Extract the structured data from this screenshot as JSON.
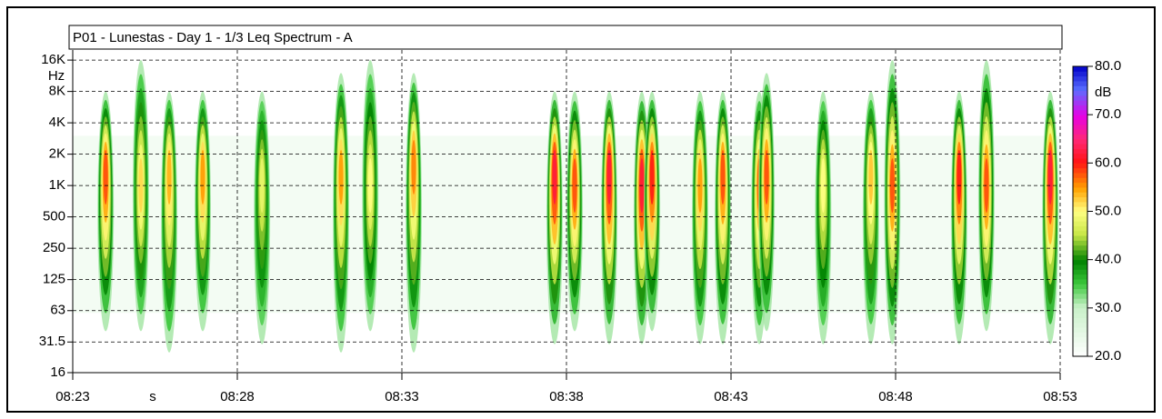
{
  "chart_data": {
    "type": "spectrogram",
    "title": "P01 - Lunestas - Day 1 - 1/3 Leq Spectrum - A",
    "x_label": "s",
    "y_label": "Hz",
    "color_label": "dB",
    "x": [
      1.0,
      2.07,
      2.93,
      3.95,
      5.75,
      8.15,
      9.04,
      10.36,
      14.64,
      15.25,
      16.3,
      17.29,
      17.6,
      19.06,
      19.75,
      20.86,
      21.08,
      22.8,
      24.25,
      24.9,
      26.93,
      27.76,
      29.7
    ],
    "values": [
      58,
      52,
      54,
      55,
      48,
      55,
      50,
      56,
      62,
      58,
      62,
      62,
      60,
      55,
      58,
      57,
      58,
      50,
      53,
      58,
      60,
      58,
      62
    ],
    "freq_peak": [
      1200,
      1000,
      1200,
      1200,
      1000,
      1200,
      1000,
      1500,
      1200,
      1000,
      1200,
      1000,
      1200,
      1000,
      1200,
      1000,
      1200,
      1000,
      1200,
      1000,
      1200,
      1000,
      1200
    ],
    "freq_low": [
      40,
      40,
      25,
      40,
      30,
      25,
      40,
      25,
      30,
      40,
      30,
      30,
      40,
      30,
      30,
      30,
      40,
      30,
      30,
      30,
      30,
      40,
      30
    ],
    "freq_high": [
      8000,
      16000,
      8000,
      8000,
      8000,
      12000,
      16000,
      12000,
      8000,
      8000,
      8000,
      8000,
      8000,
      8000,
      8000,
      8000,
      12000,
      8000,
      8000,
      16000,
      8000,
      16000,
      8000
    ],
    "xlim": [
      0,
      30
    ],
    "xticks": [
      {
        "value": 0,
        "label": "08:23"
      },
      {
        "value": 5,
        "label": "08:28"
      },
      {
        "value": 10,
        "label": "08:33"
      },
      {
        "value": 15,
        "label": "08:38"
      },
      {
        "value": 20,
        "label": "08:43"
      },
      {
        "value": 25,
        "label": "08:48"
      },
      {
        "value": 30,
        "label": "08:53"
      }
    ],
    "ylim": [
      16,
      20000
    ],
    "log_y": true,
    "grid": true,
    "yticks": [
      16,
      {
        "value": 31.5,
        "label": "31.5"
      },
      63,
      125,
      250,
      500,
      {
        "value": 1000,
        "label": "1K"
      },
      {
        "value": 2000,
        "label": "2K"
      },
      {
        "value": 4000,
        "label": "4K"
      },
      {
        "value": 8000,
        "label": "8K"
      },
      {
        "value": 16000,
        "label": "16K"
      }
    ],
    "clim": [
      20,
      80
    ],
    "cticks": [
      {
        "value": 20,
        "label": "20.0"
      },
      {
        "value": 30,
        "label": "30.0"
      },
      {
        "value": 40,
        "label": "40.0"
      },
      {
        "value": 50,
        "label": "50.0"
      },
      {
        "value": 60,
        "label": "60.0"
      },
      {
        "value": 70,
        "label": "70.0"
      },
      {
        "value": 80,
        "label": "80.0"
      }
    ]
  }
}
